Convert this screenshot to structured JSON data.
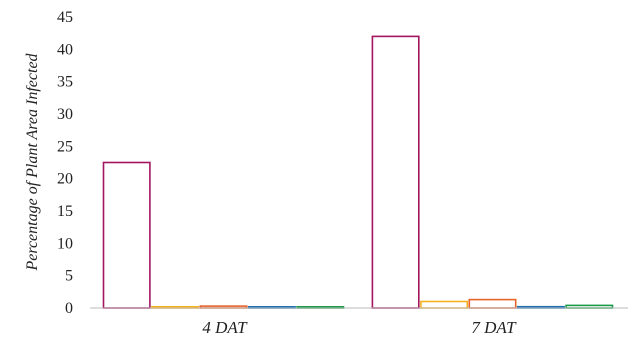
{
  "chart_data": {
    "type": "bar",
    "title": "",
    "xlabel": "",
    "ylabel": "Percentage of Plant Area Infected",
    "ylim": [
      0,
      45
    ],
    "yticks": [
      0,
      5,
      10,
      15,
      20,
      25,
      30,
      35,
      40,
      45
    ],
    "grid": false,
    "legend": "none",
    "categories": [
      "4 DAT",
      "7 DAT"
    ],
    "series": [
      {
        "color": "#a3155f",
        "values": [
          22.5,
          42.0
        ]
      },
      {
        "color": "#f5b21f",
        "values": [
          0.0,
          1.0
        ]
      },
      {
        "color": "#e8632a",
        "values": [
          0.3,
          1.3
        ]
      },
      {
        "color": "#1f6fb4",
        "values": [
          0.1,
          0.2
        ]
      },
      {
        "color": "#1b9a4a",
        "values": [
          0.1,
          0.4
        ]
      }
    ]
  }
}
